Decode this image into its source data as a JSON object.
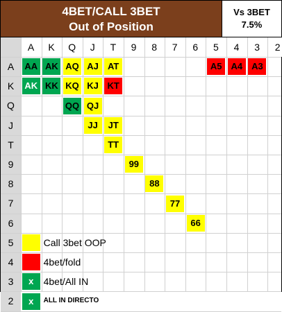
{
  "title": {
    "line1": "4BET/CALL 3BET",
    "line2": "Out of Position"
  },
  "vs": {
    "line1": "Vs 3BET",
    "line2": "7.5%"
  },
  "columns": [
    "A",
    "K",
    "Q",
    "J",
    "T",
    "9",
    "8",
    "7",
    "6",
    "5",
    "4",
    "3",
    "2"
  ],
  "rows": [
    "A",
    "K",
    "Q",
    "J",
    "T",
    "9",
    "8",
    "7",
    "6",
    "5",
    "4",
    "3",
    "2"
  ],
  "hands": [
    {
      "row": 0,
      "col": 0,
      "label": "AA",
      "color": "green"
    },
    {
      "row": 0,
      "col": 1,
      "label": "AK",
      "color": "green"
    },
    {
      "row": 0,
      "col": 2,
      "label": "AQ",
      "color": "yellow"
    },
    {
      "row": 0,
      "col": 3,
      "label": "AJ",
      "color": "yellow"
    },
    {
      "row": 0,
      "col": 4,
      "label": "AT",
      "color": "yellow"
    },
    {
      "row": 0,
      "col": 9,
      "label": "A5",
      "color": "red"
    },
    {
      "row": 0,
      "col": 10,
      "label": "A4",
      "color": "red"
    },
    {
      "row": 0,
      "col": 11,
      "label": "A3",
      "color": "red"
    },
    {
      "row": 1,
      "col": 0,
      "label": "AK",
      "color": "green-light"
    },
    {
      "row": 1,
      "col": 1,
      "label": "KK",
      "color": "green"
    },
    {
      "row": 1,
      "col": 2,
      "label": "KQ",
      "color": "yellow"
    },
    {
      "row": 1,
      "col": 3,
      "label": "KJ",
      "color": "yellow"
    },
    {
      "row": 1,
      "col": 4,
      "label": "KT",
      "color": "red"
    },
    {
      "row": 2,
      "col": 2,
      "label": "QQ",
      "color": "green"
    },
    {
      "row": 2,
      "col": 3,
      "label": "QJ",
      "color": "yellow"
    },
    {
      "row": 3,
      "col": 3,
      "label": "JJ",
      "color": "yellow"
    },
    {
      "row": 3,
      "col": 4,
      "label": "JT",
      "color": "yellow"
    },
    {
      "row": 4,
      "col": 4,
      "label": "TT",
      "color": "yellow"
    },
    {
      "row": 5,
      "col": 5,
      "label": "99",
      "color": "yellow"
    },
    {
      "row": 6,
      "col": 6,
      "label": "88",
      "color": "yellow"
    },
    {
      "row": 7,
      "col": 7,
      "label": "77",
      "color": "yellow"
    },
    {
      "row": 8,
      "col": 8,
      "label": "66",
      "color": "yellow"
    }
  ],
  "legend": [
    {
      "row": 9,
      "swatch": "",
      "color": "yellow",
      "label": "Call 3bet OOP"
    },
    {
      "row": 10,
      "swatch": "",
      "color": "red",
      "label": "4bet/fold"
    },
    {
      "row": 11,
      "swatch": "x",
      "color": "green",
      "label": "4bet/All IN"
    },
    {
      "row": 12,
      "swatch": "x",
      "color": "green",
      "label": "ALL IN DIRECTO",
      "small": true
    }
  ],
  "colors": {
    "title_bg": "#7b3f1c",
    "yellow": "#ffff00",
    "red": "#ff0000",
    "green": "#00a651"
  }
}
